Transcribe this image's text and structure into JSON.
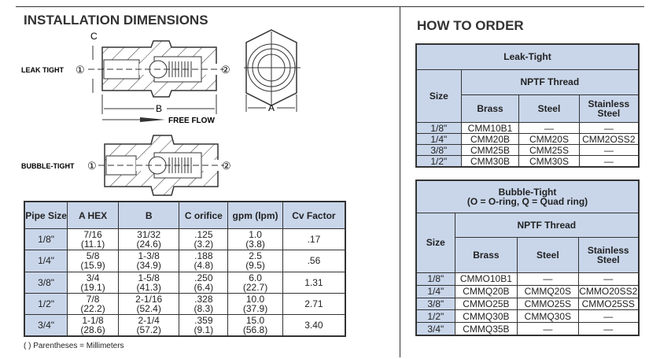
{
  "install": {
    "title": "INSTALLATION DIMENSIONS",
    "labels": {
      "leak": "LEAK TIGHT",
      "bubble": "BUBBLE-TIGHT",
      "c": "C",
      "b": "B",
      "a": "A",
      "flow": "FREE FLOW",
      "in": "①",
      "out": "②"
    },
    "headers": [
      "Pipe Size",
      "A HEX",
      "B",
      "C orifice",
      "gpm (lpm)",
      "Cv Factor"
    ],
    "rows": [
      {
        "size": "1/8\"",
        "a": "7/16",
        "a_mm": "(11.1)",
        "b": "31/32",
        "b_mm": "(24.6)",
        "c": ".125",
        "c_mm": "(3.2)",
        "gpm": "1.0",
        "lpm": "(3.8)",
        "cv": ".17"
      },
      {
        "size": "1/4\"",
        "a": "5/8",
        "a_mm": "(15.9)",
        "b": "1-3/8",
        "b_mm": "(34.9)",
        "c": ".188",
        "c_mm": "(4.8)",
        "gpm": "2.5",
        "lpm": "(9.5)",
        "cv": ".56"
      },
      {
        "size": "3/8\"",
        "a": "3/4",
        "a_mm": "(19.1)",
        "b": "1-5/8",
        "b_mm": "(41.3)",
        "c": ".250",
        "c_mm": "(6.4)",
        "gpm": "6.0",
        "lpm": "(22.7)",
        "cv": "1.31"
      },
      {
        "size": "1/2\"",
        "a": "7/8",
        "a_mm": "(22.2)",
        "b": "2-1/16",
        "b_mm": "(52.4)",
        "c": ".328",
        "c_mm": "(8.3)",
        "gpm": "10.0",
        "lpm": "(37.9)",
        "cv": "2.71"
      },
      {
        "size": "3/4\"",
        "a": "1-1/8",
        "a_mm": "(28.6)",
        "b": "2-1/4",
        "b_mm": "(57.2)",
        "c": ".359",
        "c_mm": "(9.1)",
        "gpm": "15.0",
        "lpm": "(56.8)",
        "cv": "3.40"
      }
    ],
    "note": "(  ) Parentheses = Millimeters"
  },
  "order": {
    "title": "HOW TO ORDER",
    "leak": {
      "title": "Leak-Tight",
      "size": "Size",
      "thread": "NPTF Thread",
      "cols": [
        "Brass",
        "Steel",
        "Stainless Steel"
      ],
      "rows": [
        [
          "1/8\"",
          "CMM10B1",
          "—",
          "—"
        ],
        [
          "1/4\"",
          "CMM20B",
          "CMM20S",
          "CMM2OSS2"
        ],
        [
          "3/8\"",
          "CMM25B",
          "CMM25S",
          "—"
        ],
        [
          "1/2\"",
          "CMM30B",
          "CMM30S",
          "—"
        ]
      ]
    },
    "bubble": {
      "title": "Bubble-Tight",
      "subtitle": "(O = O-ring, Q = Quad ring)",
      "size": "Size",
      "thread": "NPTF Thread",
      "cols": [
        "Brass",
        "Steel",
        "Stainless Steel"
      ],
      "rows": [
        [
          "1/8\"",
          "CMMO10B1",
          "—",
          "—"
        ],
        [
          "1/4\"",
          "CMMQ20B",
          "CMMQ20S",
          "CMMO20SS2"
        ],
        [
          "3/8\"",
          "CMMO25B",
          "CMMO25S",
          "CMMO25SS"
        ],
        [
          "1/2\"",
          "CMMQ30B",
          "CMMQ30S",
          "—"
        ],
        [
          "3/4\"",
          "CMMQ35B",
          "—",
          "—"
        ]
      ]
    }
  }
}
